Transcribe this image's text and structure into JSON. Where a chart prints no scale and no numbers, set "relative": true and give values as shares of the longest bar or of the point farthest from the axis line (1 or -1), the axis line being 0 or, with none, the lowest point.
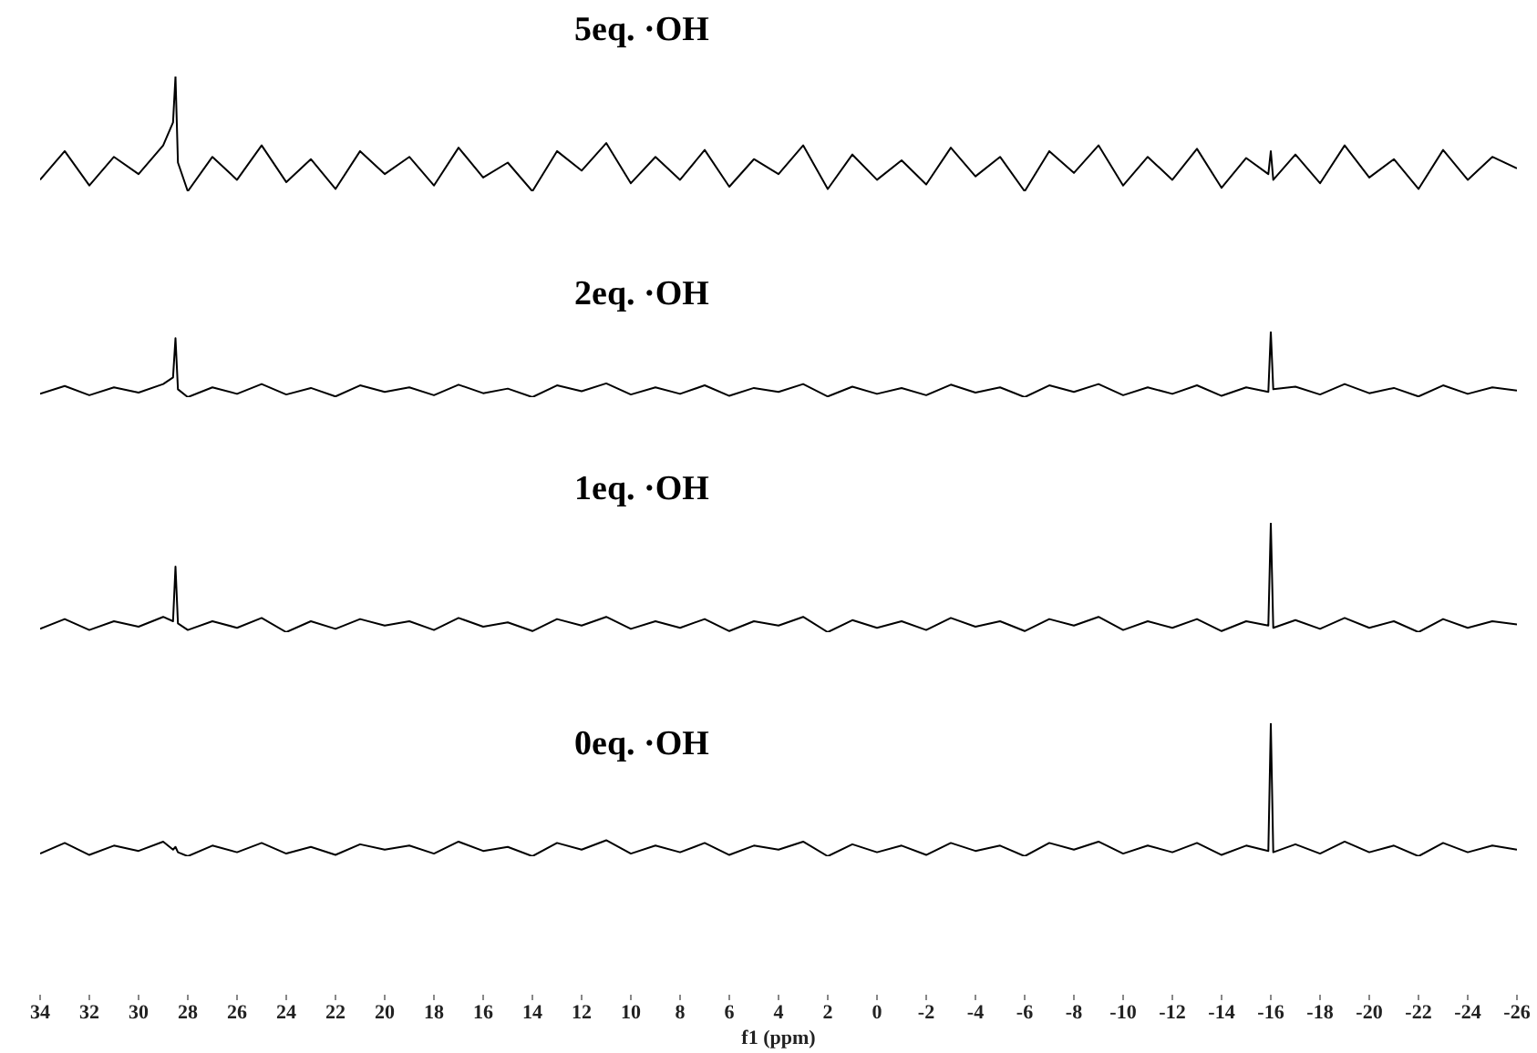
{
  "chart_data": [
    {
      "type": "line",
      "title": "5eq. ·OH",
      "relative": true,
      "tick_labels": false,
      "xlim": [
        34,
        -26
      ],
      "color": "#000000",
      "x": [
        34,
        33,
        32,
        31,
        30,
        29,
        28.6,
        28.5,
        28.4,
        28,
        27,
        26,
        25,
        24,
        23,
        22,
        21,
        20,
        19,
        18,
        17,
        16,
        15,
        14,
        13,
        12,
        11,
        10,
        9,
        8,
        7,
        6,
        5,
        4,
        3,
        2,
        1,
        0,
        -1,
        -2,
        -3,
        -4,
        -5,
        -6,
        -7,
        -8,
        -9,
        -10,
        -11,
        -12,
        -13,
        -14,
        -15,
        -15.9,
        -16,
        -16.1,
        -17,
        -18,
        -19,
        -20,
        -21,
        -22,
        -23,
        -24,
        -25,
        -26
      ],
      "values": [
        0.1,
        0.35,
        0.05,
        0.3,
        0.15,
        0.4,
        0.6,
        1,
        0.25,
        0,
        0.3,
        0.1,
        0.4,
        0.08,
        0.28,
        0.02,
        0.35,
        0.15,
        0.3,
        0.05,
        0.38,
        0.12,
        0.25,
        0,
        0.35,
        0.18,
        0.42,
        0.07,
        0.3,
        0.1,
        0.36,
        0.04,
        0.28,
        0.15,
        0.4,
        0.02,
        0.32,
        0.1,
        0.27,
        0.06,
        0.38,
        0.13,
        0.3,
        0,
        0.35,
        0.16,
        0.4,
        0.05,
        0.3,
        0.1,
        0.37,
        0.03,
        0.29,
        0.15,
        0.35,
        0.1,
        0.32,
        0.07,
        0.4,
        0.12,
        0.28,
        0.02,
        0.36,
        0.1,
        0.3,
        0.2
      ]
    },
    {
      "type": "line",
      "title": "2eq. ·OH",
      "relative": true,
      "tick_labels": false,
      "xlim": [
        34,
        -26
      ],
      "color": "#000000",
      "x": [
        34,
        33,
        32,
        31,
        30,
        29,
        28.6,
        28.5,
        28.4,
        28,
        27,
        26,
        25,
        24,
        23,
        22,
        21,
        20,
        19,
        18,
        17,
        16,
        15,
        14,
        13,
        12,
        11,
        10,
        9,
        8,
        7,
        6,
        5,
        4,
        3,
        2,
        1,
        0,
        -1,
        -2,
        -3,
        -4,
        -5,
        -6,
        -7,
        -8,
        -9,
        -10,
        -11,
        -12,
        -13,
        -14,
        -15,
        -15.9,
        -16,
        -16.1,
        -17,
        -18,
        -19,
        -20,
        -21,
        -22,
        -23,
        -24,
        -25,
        -26
      ],
      "values": [
        0.05,
        0.17,
        0.03,
        0.15,
        0.07,
        0.2,
        0.3,
        0.9,
        0.12,
        0,
        0.15,
        0.05,
        0.2,
        0.04,
        0.14,
        0.01,
        0.18,
        0.08,
        0.15,
        0.03,
        0.19,
        0.06,
        0.13,
        0,
        0.18,
        0.09,
        0.21,
        0.04,
        0.15,
        0.05,
        0.18,
        0.02,
        0.14,
        0.08,
        0.2,
        0.01,
        0.16,
        0.05,
        0.14,
        0.03,
        0.19,
        0.07,
        0.15,
        0,
        0.18,
        0.08,
        0.2,
        0.03,
        0.15,
        0.05,
        0.18,
        0.02,
        0.15,
        0.08,
        1,
        0.12,
        0.16,
        0.04,
        0.2,
        0.06,
        0.14,
        0.01,
        0.18,
        0.05,
        0.15,
        0.1
      ]
    },
    {
      "type": "line",
      "title": "1eq. ·OH",
      "relative": true,
      "tick_labels": false,
      "xlim": [
        34,
        -26
      ],
      "color": "#000000",
      "x": [
        34,
        33,
        32,
        31,
        30,
        29,
        28.6,
        28.5,
        28.4,
        28,
        27,
        26,
        25,
        24,
        23,
        22,
        21,
        20,
        19,
        18,
        17,
        16,
        15,
        14,
        13,
        12,
        11,
        10,
        9,
        8,
        7,
        6,
        5,
        4,
        3,
        2,
        1,
        0,
        -1,
        -2,
        -3,
        -4,
        -5,
        -6,
        -7,
        -8,
        -9,
        -10,
        -11,
        -12,
        -13,
        -14,
        -15,
        -15.9,
        -16,
        -16.1,
        -17,
        -18,
        -19,
        -20,
        -21,
        -22,
        -23,
        -24,
        -25,
        -26
      ],
      "values": [
        0.03,
        0.12,
        0.02,
        0.1,
        0.05,
        0.14,
        0.1,
        0.6,
        0.08,
        0.02,
        0.1,
        0.04,
        0.13,
        0,
        0.1,
        0.03,
        0.12,
        0.06,
        0.1,
        0.02,
        0.13,
        0.05,
        0.09,
        0.01,
        0.12,
        0.06,
        0.14,
        0.03,
        0.1,
        0.04,
        0.12,
        0.01,
        0.1,
        0.06,
        0.14,
        0,
        0.11,
        0.04,
        0.1,
        0.02,
        0.13,
        0.05,
        0.1,
        0.01,
        0.12,
        0.06,
        0.14,
        0.02,
        0.1,
        0.04,
        0.12,
        0.01,
        0.1,
        0.06,
        1,
        0.04,
        0.11,
        0.03,
        0.13,
        0.04,
        0.1,
        0,
        0.12,
        0.04,
        0.1,
        0.07
      ]
    },
    {
      "type": "line",
      "title": "0eq. ·OH",
      "relative": true,
      "tick_labels": "x",
      "xlabel": "f1 (ppm)",
      "xlim": [
        34,
        -26
      ],
      "xticks": [
        34,
        32,
        30,
        28,
        26,
        24,
        22,
        20,
        18,
        16,
        14,
        12,
        10,
        8,
        6,
        4,
        2,
        0,
        -2,
        -4,
        -6,
        -8,
        -10,
        -12,
        -14,
        -16,
        -18,
        -20,
        -22,
        -24,
        -26
      ],
      "color": "#000000",
      "x": [
        34,
        33,
        32,
        31,
        30,
        29,
        28.6,
        28.5,
        28.4,
        28,
        27,
        26,
        25,
        24,
        23,
        22,
        21,
        20,
        19,
        18,
        17,
        16,
        15,
        14,
        13,
        12,
        11,
        10,
        9,
        8,
        7,
        6,
        5,
        4,
        3,
        2,
        1,
        0,
        -1,
        -2,
        -3,
        -4,
        -5,
        -6,
        -7,
        -8,
        -9,
        -10,
        -11,
        -12,
        -13,
        -14,
        -15,
        -15.9,
        -16,
        -16.1,
        -17,
        -18,
        -19,
        -20,
        -21,
        -22,
        -23,
        -24,
        -25,
        -26
      ],
      "values": [
        0.02,
        0.1,
        0.01,
        0.08,
        0.04,
        0.11,
        0.05,
        0.07,
        0.03,
        0,
        0.08,
        0.03,
        0.1,
        0.02,
        0.07,
        0.01,
        0.09,
        0.05,
        0.08,
        0.02,
        0.11,
        0.04,
        0.07,
        0,
        0.1,
        0.05,
        0.12,
        0.02,
        0.08,
        0.03,
        0.1,
        0.01,
        0.08,
        0.05,
        0.11,
        0,
        0.09,
        0.03,
        0.08,
        0.01,
        0.1,
        0.04,
        0.08,
        0,
        0.1,
        0.05,
        0.11,
        0.02,
        0.08,
        0.03,
        0.1,
        0.01,
        0.08,
        0.04,
        1,
        0.03,
        0.09,
        0.02,
        0.11,
        0.03,
        0.08,
        0,
        0.1,
        0.03,
        0.08,
        0.05
      ]
    }
  ]
}
